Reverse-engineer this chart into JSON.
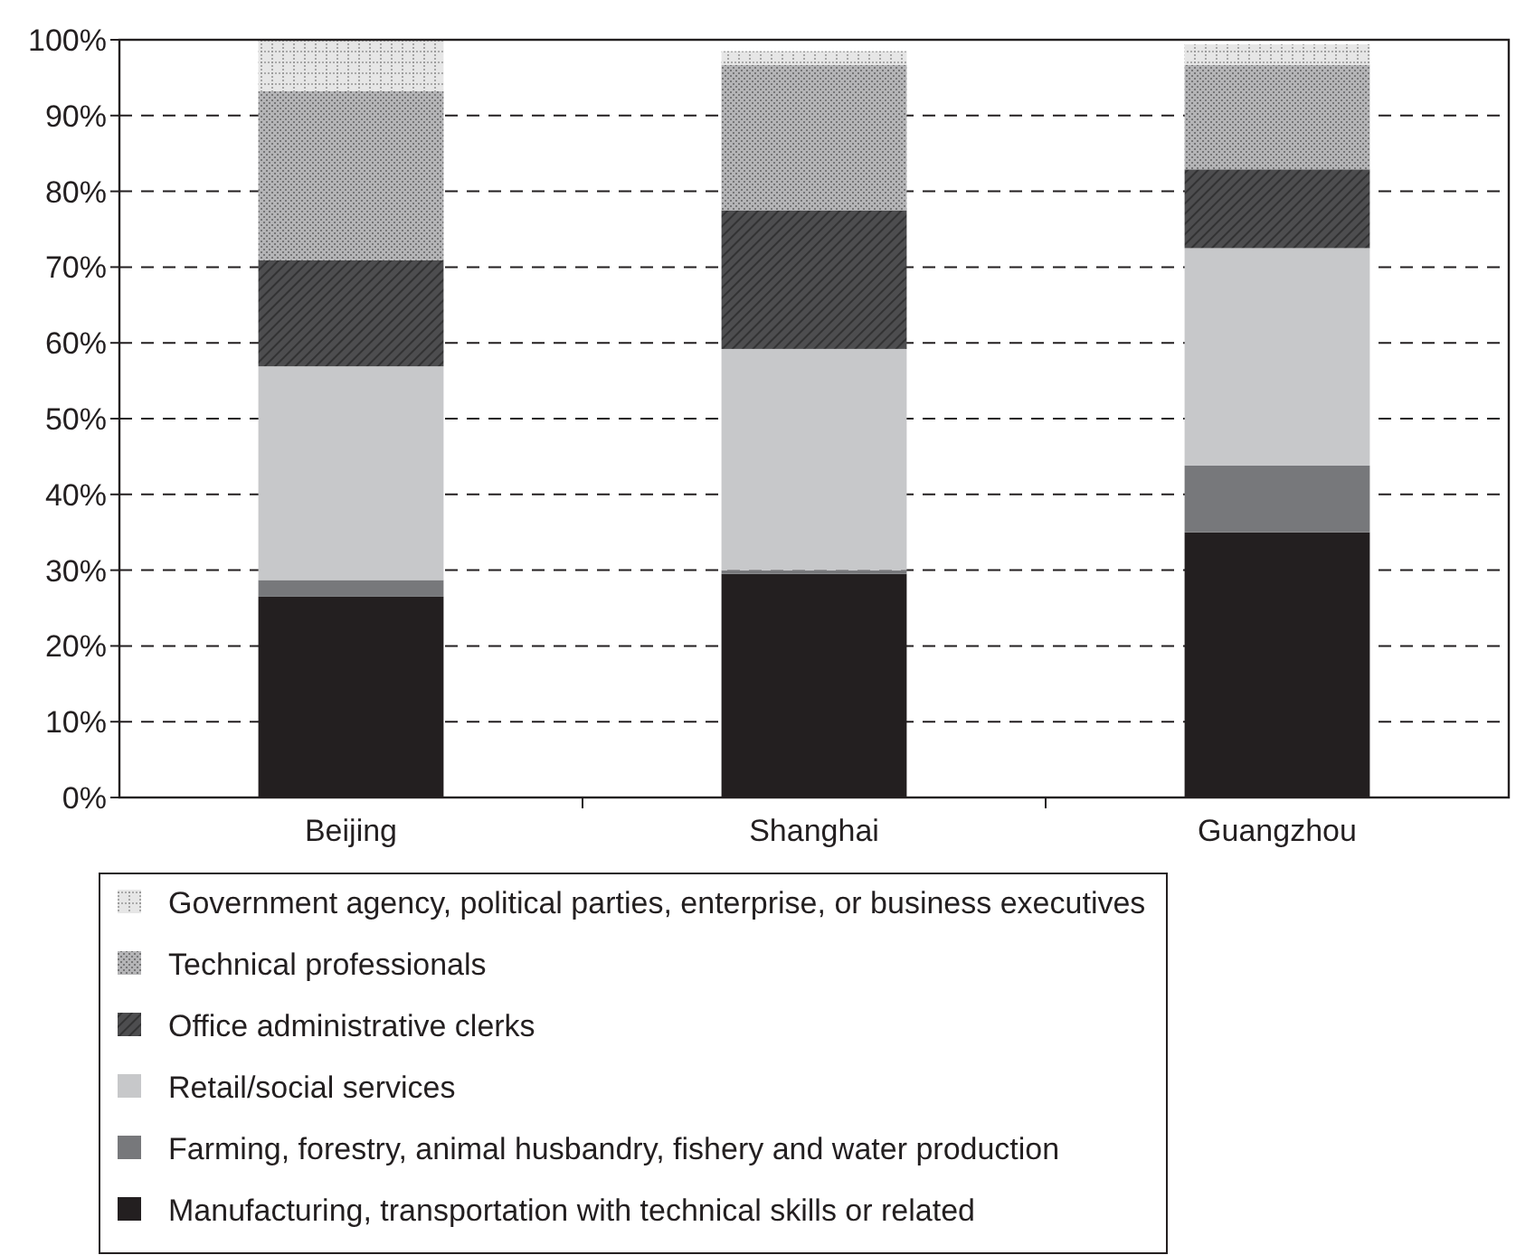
{
  "chart_data": {
    "type": "bar",
    "stacked": true,
    "categories": [
      "Beijing",
      "Shanghai",
      "Guangzhou"
    ],
    "series": [
      {
        "name": "Manufacturing, transportation with technical skills or related",
        "color": "#231f20",
        "values": [
          26.5,
          29.5,
          35.0
        ]
      },
      {
        "name": "Farming, forestry, animal husbandry, fishery and water production",
        "color": "#77787b",
        "values": [
          2.2,
          0.5,
          8.8
        ]
      },
      {
        "name": "Retail/social services",
        "color": "#c7c8ca",
        "values": [
          28.2,
          29.2,
          28.7
        ]
      },
      {
        "name": "Office administrative clerks",
        "color": "#4d4d4f",
        "values": [
          14.0,
          18.3,
          10.4
        ]
      },
      {
        "name": "Technical professionals",
        "color": "#b5b5b7",
        "values": [
          22.3,
          19.2,
          13.8
        ]
      },
      {
        "name": "Government agency, political parties, enterprise, or business executives",
        "color": "#e6e6e6",
        "values": [
          6.7,
          1.8,
          2.7
        ]
      }
    ],
    "ylim": [
      0,
      100
    ],
    "yticks": [
      {
        "value": 0,
        "label": "0%"
      },
      {
        "value": 10,
        "label": "10%"
      },
      {
        "value": 20,
        "label": "20%"
      },
      {
        "value": 30,
        "label": "30%"
      },
      {
        "value": 40,
        "label": "40%"
      },
      {
        "value": 50,
        "label": "50%"
      },
      {
        "value": 60,
        "label": "60%"
      },
      {
        "value": 70,
        "label": "70%"
      },
      {
        "value": 80,
        "label": "80%"
      },
      {
        "value": 90,
        "label": "90%"
      },
      {
        "value": 100,
        "label": "100%"
      }
    ],
    "grid": "y",
    "legend": "bottom"
  }
}
